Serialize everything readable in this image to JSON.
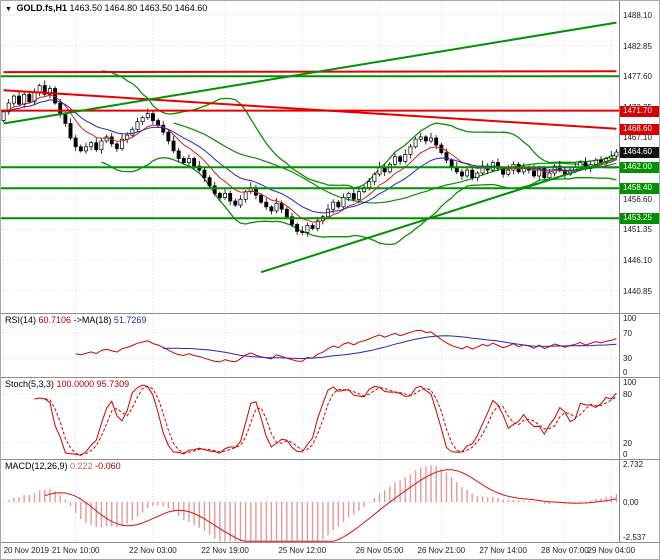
{
  "window": {
    "symbol_timeframe": "GOLD.fs,H1",
    "open": "1463.50",
    "high": "1464.80",
    "low": "1463.50",
    "close": "1464.60"
  },
  "icons": {
    "dropdown_arrow": "▼"
  },
  "chart_data": {
    "type": "candlestick",
    "title": "GOLD.fs,H1",
    "symbol": "GOLD.fs",
    "timeframe": "H1",
    "legend_position": "top-left",
    "grid": true,
    "x_labels": [
      {
        "bar": 0,
        "label": "20 Nov 2019"
      },
      {
        "bar": 14,
        "label": "21 Nov 10:00"
      },
      {
        "bar": 29,
        "label": "22 Nov 03:00"
      },
      {
        "bar": 43,
        "label": "22 Nov 19:00"
      },
      {
        "bar": 58,
        "label": "25 Nov 12:00"
      },
      {
        "bar": 73,
        "label": "26 Nov 05:00"
      },
      {
        "bar": 85,
        "label": "26 Nov 21:00"
      },
      {
        "bar": 97,
        "label": "27 Nov 14:00"
      },
      {
        "bar": 109,
        "label": "28 Nov 07:00"
      },
      {
        "bar": 118,
        "label": "29 Nov 04:00"
      }
    ],
    "price_axis": {
      "min": 1437.0,
      "max": 1490.5,
      "ticks": [
        1488.1,
        1482.85,
        1477.6,
        1472.35,
        1467.1,
        1461.85,
        1456.6,
        1451.35,
        1446.1,
        1440.85
      ]
    },
    "candles": {
      "first_open": 1470.0,
      "closes": [
        1471.5,
        1473.0,
        1474.2,
        1472.8,
        1474.5,
        1473.2,
        1474.8,
        1476.0,
        1474.5,
        1475.5,
        1473.0,
        1471.0,
        1469.5,
        1467.0,
        1465.5,
        1464.8,
        1465.5,
        1466.2,
        1465.0,
        1466.5,
        1467.2,
        1466.0,
        1465.2,
        1466.8,
        1467.5,
        1468.5,
        1469.8,
        1470.5,
        1471.2,
        1470.0,
        1469.2,
        1468.0,
        1466.5,
        1464.8,
        1463.5,
        1462.8,
        1463.5,
        1462.2,
        1461.5,
        1460.2,
        1458.8,
        1457.5,
        1456.8,
        1457.5,
        1456.2,
        1455.5,
        1456.5,
        1457.8,
        1458.5,
        1457.2,
        1456.0,
        1455.2,
        1454.5,
        1455.8,
        1454.8,
        1453.5,
        1452.2,
        1451.0,
        1450.8,
        1452.0,
        1451.5,
        1452.8,
        1453.5,
        1454.8,
        1456.0,
        1455.2,
        1456.8,
        1457.5,
        1456.5,
        1457.8,
        1458.5,
        1459.5,
        1460.8,
        1462.0,
        1461.2,
        1462.5,
        1463.8,
        1463.0,
        1464.2,
        1465.5,
        1466.8,
        1467.2,
        1466.5,
        1467.0,
        1465.8,
        1464.5,
        1463.2,
        1462.0,
        1461.2,
        1460.5,
        1461.5,
        1460.2,
        1461.0,
        1462.2,
        1461.5,
        1462.8,
        1461.8,
        1460.8,
        1461.5,
        1462.5,
        1461.2,
        1462.0,
        1461.5,
        1460.5,
        1461.8,
        1460.2,
        1461.0,
        1462.2,
        1461.5,
        1460.8,
        1461.5,
        1462.0,
        1462.8,
        1461.8,
        1462.5,
        1463.2,
        1462.8,
        1463.5,
        1463.9,
        1464.6
      ],
      "wick_pattern": [
        [
          0.4,
          0.3
        ],
        [
          0.7,
          0.5
        ],
        [
          0.3,
          0.6
        ],
        [
          0.9,
          0.4
        ],
        [
          0.5,
          0.7
        ]
      ]
    },
    "overlays": {
      "bollinger": {
        "period": 20,
        "deviation": 2,
        "color": "#089000"
      },
      "ma_fast": {
        "period": 8,
        "type": "ema",
        "color": "#cc2222"
      },
      "ma_slow": {
        "period": 16,
        "type": "ema",
        "color": "#2525bb"
      },
      "ma_green": {
        "period": 34,
        "type": "sma",
        "color": "#089000"
      },
      "hlines": [
        {
          "price": 1477.6,
          "color": "#009000",
          "width": 2
        },
        {
          "price": 1471.7,
          "color": "#e60000",
          "width": 2
        },
        {
          "price": 1462.0,
          "color": "#009000",
          "width": 2
        },
        {
          "price": 1458.4,
          "color": "#009000",
          "width": 2
        },
        {
          "price": 1453.25,
          "color": "#009000",
          "width": 2
        }
      ],
      "trendlines": [
        {
          "b1": 0,
          "p1": 1478.3,
          "b2": 119,
          "p2": 1478.45,
          "color": "#e60000",
          "width": 2
        },
        {
          "b1": 0,
          "p1": 1475.2,
          "b2": 119,
          "p2": 1468.6,
          "color": "#e60000",
          "width": 2
        },
        {
          "b1": 0,
          "p1": 1469.5,
          "b2": 119,
          "p2": 1486.8,
          "color": "#009000",
          "width": 2
        },
        {
          "b1": 50,
          "p1": 1444.0,
          "b2": 119,
          "p2": 1463.5,
          "color": "#009000",
          "width": 2
        }
      ]
    },
    "badges": [
      {
        "price": 1471.7,
        "label": "1471.70",
        "color": "#d60000"
      },
      {
        "price": 1468.6,
        "label": "1468.60",
        "color": "#d60000"
      },
      {
        "price": 1464.6,
        "label": "1464.60",
        "color": "#111111"
      },
      {
        "price": 1462.0,
        "label": "1462.00",
        "color": "#009000"
      },
      {
        "price": 1458.4,
        "label": "1458.40",
        "color": "#009000"
      },
      {
        "price": 1453.25,
        "label": "1453.25",
        "color": "#009000"
      }
    ],
    "indicators": {
      "rsi": {
        "name": "RSI(14)",
        "value": "60.7106",
        "ma_name": "->MA(18)",
        "ma_value": "51.7269",
        "range": [
          0,
          100
        ],
        "grid": [
          70,
          30
        ],
        "ticks": [
          100,
          70,
          30,
          0
        ],
        "line_color": "#cc0000",
        "ma_color": "#2525bb"
      },
      "stoch": {
        "name": "Stoch(5,3,3)",
        "value": "100.0000",
        "signal_value": "95.7309",
        "range": [
          0,
          100
        ],
        "grid": [
          80,
          20
        ],
        "ticks": [
          100,
          80,
          20,
          0
        ],
        "line_color": "#cc0000",
        "signal_color": "#cc0000"
      },
      "macd": {
        "name": "MACD(12,26,9)",
        "value": "0.222",
        "signal_value": "-0.060",
        "scale": [
          -2.85,
          3.0
        ],
        "ticks": [
          {
            "v": 2.732,
            "label": "2.732"
          },
          {
            "v": 0,
            "label": "0.00"
          },
          {
            "v": -2.537,
            "label": "-2.537"
          }
        ],
        "hist_color": "#e39a9a",
        "signal_color": "#dd1111"
      }
    },
    "colors": {
      "grid": "#cdcdcd",
      "candle_up_fill": "#ffffff",
      "candle_down_fill": "#000000",
      "candle_stroke": "#000000",
      "level_green": "#009000",
      "level_red": "#e60000"
    }
  }
}
